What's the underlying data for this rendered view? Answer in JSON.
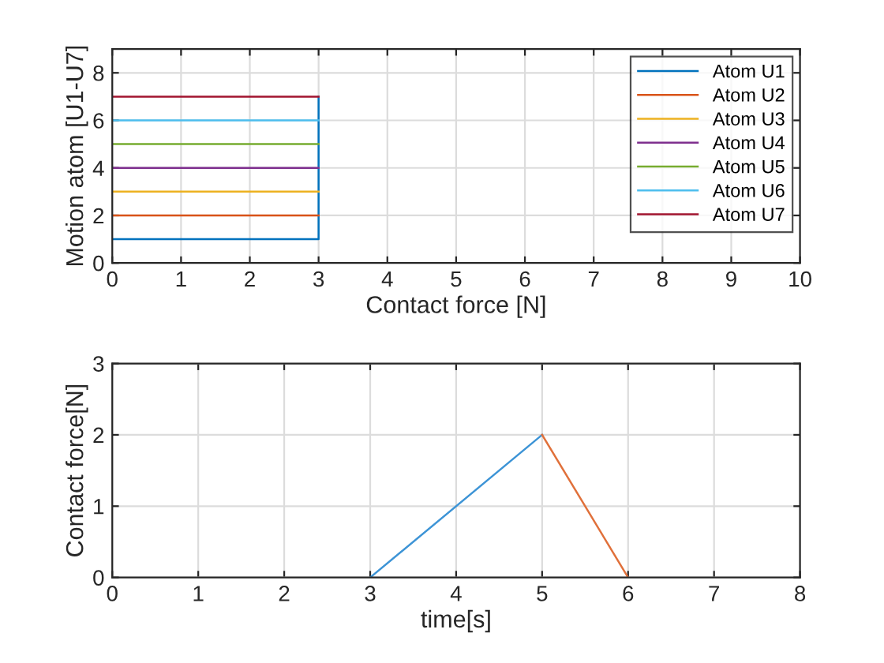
{
  "chart_data": [
    {
      "type": "line",
      "xlabel": "Contact force [N]",
      "ylabel": "Motion atom [U1-U7]",
      "xlim": [
        0,
        10
      ],
      "xticks": [
        0,
        1,
        2,
        3,
        4,
        5,
        6,
        7,
        8,
        9,
        10
      ],
      "ylim": [
        0,
        9
      ],
      "yticks": [
        0,
        2,
        4,
        6,
        8
      ],
      "grid": true,
      "legend": "top right",
      "series": [
        {
          "name": "Atom U1",
          "color": "#0072bd",
          "x": [
            0,
            3,
            3
          ],
          "values": [
            1,
            1,
            7
          ]
        },
        {
          "name": "Atom U2",
          "color": "#d95319",
          "x": [
            0,
            3
          ],
          "values": [
            2,
            2
          ]
        },
        {
          "name": "Atom U3",
          "color": "#edb120",
          "x": [
            0,
            3
          ],
          "values": [
            3,
            3
          ]
        },
        {
          "name": "Atom U4",
          "color": "#7e2f8e",
          "x": [
            0,
            3
          ],
          "values": [
            4,
            4
          ]
        },
        {
          "name": "Atom U5",
          "color": "#77ac30",
          "x": [
            0,
            3
          ],
          "values": [
            5,
            5
          ]
        },
        {
          "name": "Atom U6",
          "color": "#4dbeee",
          "x": [
            0,
            3
          ],
          "values": [
            6,
            6
          ]
        },
        {
          "name": "Atom U7",
          "color": "#a2142f",
          "x": [
            0,
            3
          ],
          "values": [
            7,
            7
          ]
        }
      ]
    },
    {
      "type": "line",
      "xlabel": "time[s]",
      "ylabel": "Contact force[N]",
      "xlim": [
        0,
        8
      ],
      "xticks": [
        0,
        1,
        2,
        3,
        4,
        5,
        6,
        7,
        8
      ],
      "ylim": [
        0,
        3
      ],
      "yticks": [
        0,
        1,
        2,
        3
      ],
      "grid": true,
      "series": [
        {
          "color": "#3d94d6",
          "x": [
            3,
            5
          ],
          "values": [
            0,
            2
          ]
        },
        {
          "color": "#e0703a",
          "x": [
            5,
            6
          ],
          "values": [
            2,
            0
          ]
        }
      ]
    }
  ]
}
